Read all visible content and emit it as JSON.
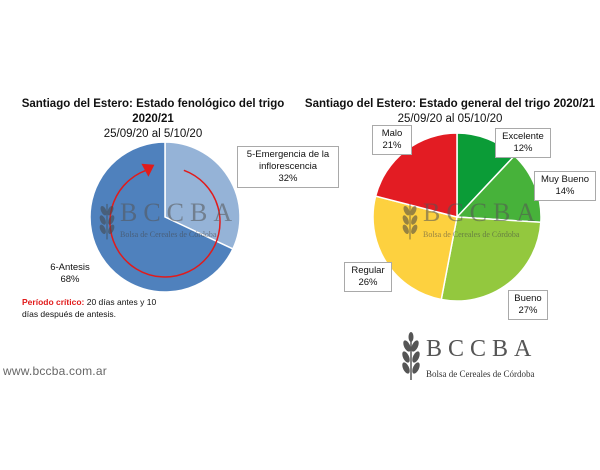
{
  "chart_data": [
    {
      "type": "pie",
      "title": "Santiago del Estero: Estado fenológico del trigo 2020/21",
      "subtitle": "25/09/20 al 5/10/20",
      "slices": [
        {
          "name": "5-Emergencia de la inflorescencia",
          "name_lines": [
            "5-Emergencia de la",
            "inflorescencia"
          ],
          "value": 32,
          "label": "32%",
          "color": "#95b3d7"
        },
        {
          "name": "6-Antesis",
          "name_lines": [
            "6-Antesis"
          ],
          "value": 68,
          "label": "68%",
          "color": "#4f81bd"
        }
      ],
      "annotation": {
        "title": "Período crítico:",
        "text": "20 días antes y 10 días después de antesis.",
        "color": "#e11b1b"
      }
    },
    {
      "type": "pie",
      "title": "Santiago del Estero: Estado general del trigo 2020/21",
      "subtitle": "25/09/20 al 05/10/20",
      "slices": [
        {
          "name": "Excelente",
          "value": 12,
          "label": "12%",
          "color": "#0b9c37"
        },
        {
          "name": "Muy Bueno",
          "value": 14,
          "label": "14%",
          "color": "#47b23a"
        },
        {
          "name": "Bueno",
          "value": 27,
          "label": "27%",
          "color": "#93c83e"
        },
        {
          "name": "Regular",
          "value": 26,
          "label": "26%",
          "color": "#fdd13f"
        },
        {
          "name": "Malo",
          "value": 21,
          "label": "21%",
          "color": "#e31c23"
        }
      ]
    }
  ],
  "watermark": {
    "brand": "BCCBA",
    "org": "Bolsa de Cereales de Córdoba"
  },
  "logo": {
    "brand": "BCCBA",
    "org": "Bolsa de Cereales de Córdoba"
  },
  "website": "www.bccba.com.ar",
  "icons": {
    "logo": "wheat-icon",
    "cycle": "cycle-arrow-icon"
  }
}
